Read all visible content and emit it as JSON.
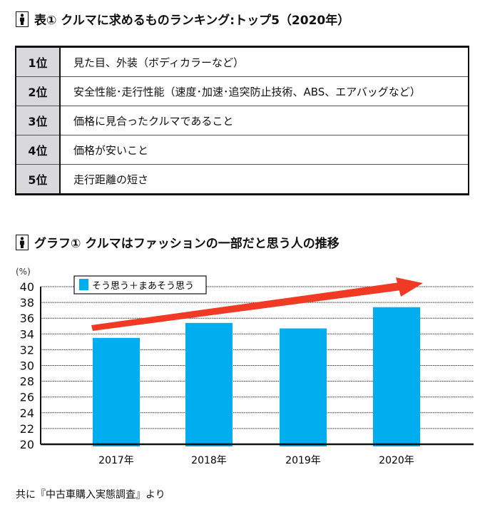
{
  "table_section": {
    "title": "表① クルマに求めるものランキング:トップ5（2020年）",
    "icon": "person-icon",
    "rows": [
      {
        "rank": "1位",
        "item": "見た目、外装（ボディカラーなど）"
      },
      {
        "rank": "2位",
        "item": "安全性能･走行性能（速度･加速･追突防止技術、ABS、エアバッグなど）"
      },
      {
        "rank": "3位",
        "item": "価格に見合ったクルマであること"
      },
      {
        "rank": "4位",
        "item": "価格が安いこと"
      },
      {
        "rank": "5位",
        "item": "走行距離の短さ"
      }
    ]
  },
  "chart_section": {
    "title": "グラフ① クルマはファッションの一部だと思う人の推移",
    "icon": "person-icon"
  },
  "chart_data": {
    "type": "bar",
    "title": "グラフ① クルマはファッションの一部だと思う人の推移",
    "ylabel": "(%)",
    "xlabel": "",
    "categories": [
      "2017年",
      "2018年",
      "2019年",
      "2020年"
    ],
    "series": [
      {
        "name": "そう思う＋まあそう思う",
        "values": [
          33.5,
          35.4,
          34.7,
          37.4
        ],
        "color": "#00aeef"
      }
    ],
    "ylim": [
      20,
      40
    ],
    "yticks": [
      "20",
      "22",
      "24",
      "26",
      "28",
      "30",
      "32",
      "34",
      "36",
      "38",
      "40"
    ],
    "grid": true,
    "legend": "top-left",
    "annotation": {
      "type": "trend-arrow",
      "color": "#f03a24"
    }
  },
  "footer": "共に『中古車購入実態調査』より"
}
